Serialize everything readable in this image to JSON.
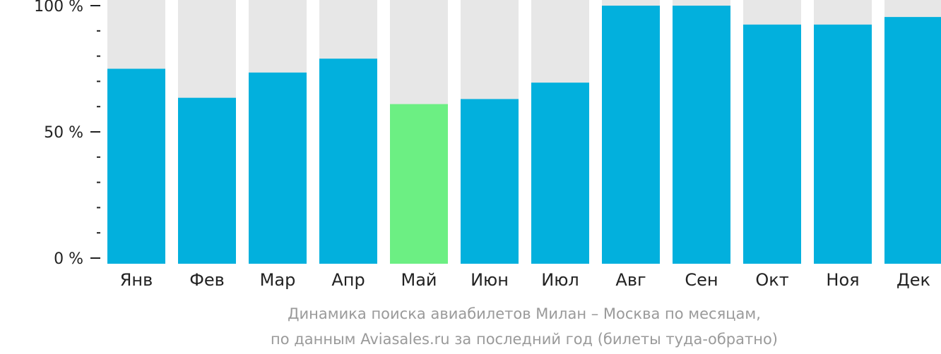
{
  "chart_data": {
    "type": "bar",
    "categories": [
      "Янв",
      "Фев",
      "Мар",
      "Апр",
      "Май",
      "Июн",
      "Июл",
      "Авг",
      "Сен",
      "Окт",
      "Ноя",
      "Дек"
    ],
    "values": [
      75,
      63.5,
      73.5,
      79,
      61,
      63,
      69.5,
      100,
      100,
      92.5,
      92.5,
      95.5
    ],
    "highlight_index": 4,
    "ylim": [
      0,
      100
    ],
    "yticks": [
      {
        "value": 0,
        "label": "0 %"
      },
      {
        "value": 50,
        "label": "50 %"
      },
      {
        "value": 100,
        "label": "100 %"
      }
    ],
    "minor_tick_step": 10,
    "colors": {
      "bar": "#02b0dd",
      "highlight": "#6cef83",
      "background_bar": "#e7e7e7",
      "axis": "#222222"
    },
    "caption_line1": "Динамика поиска авиабилетов Милан – Москва по месяцам,",
    "caption_line2": "по данным Aviasales.ru за последний год (билеты туда-обратно)"
  }
}
